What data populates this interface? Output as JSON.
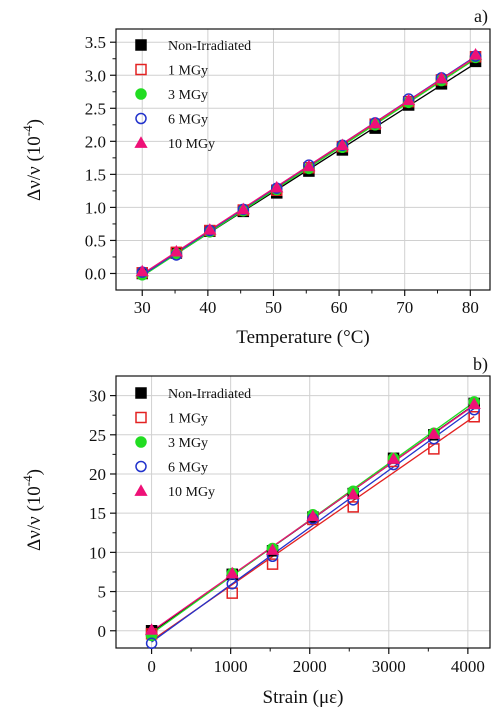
{
  "chart_data": [
    {
      "type": "scatter",
      "panel_label": "a)",
      "xlabel": "Temperature (°C)",
      "ylabel": "Δν/ν (10⁻⁴)",
      "ylabel_main": "Δν/ν (10",
      "ylabel_exp": "-4",
      "ylabel_close": ")",
      "xlim": [
        26,
        83
      ],
      "ylim": [
        -0.25,
        3.7
      ],
      "xticks": [
        30,
        40,
        50,
        60,
        70,
        80
      ],
      "xtick_labels": [
        "30",
        "40",
        "50",
        "60",
        "70",
        "80"
      ],
      "yticks": [
        0,
        0.5,
        1,
        1.5,
        2,
        2.5,
        3,
        3.5
      ],
      "ytick_labels": [
        "0.0",
        "0.5",
        "1.0",
        "1.5",
        "2.0",
        "2.5",
        "3.0",
        "3.5"
      ],
      "grid": true,
      "legend_position": "top-left",
      "x": [
        30,
        35.2,
        40.3,
        45.4,
        50.5,
        55.4,
        60.5,
        65.5,
        70.6,
        75.6,
        80.8
      ],
      "series": [
        {
          "name": "Non-Irradiated",
          "marker": "square-filled",
          "color": "#000000",
          "values": [
            0.0,
            0.31,
            0.64,
            0.94,
            1.22,
            1.55,
            1.87,
            2.2,
            2.55,
            2.87,
            3.21
          ]
        },
        {
          "name": "1 MGy",
          "marker": "square-open",
          "color": "#e32222",
          "values": [
            0.01,
            0.32,
            0.65,
            0.96,
            1.26,
            1.6,
            1.92,
            2.26,
            2.6,
            2.93,
            3.28
          ]
        },
        {
          "name": "3 MGy",
          "marker": "circle-filled",
          "color": "#22dd22",
          "values": [
            -0.02,
            0.3,
            0.63,
            0.95,
            1.27,
            1.59,
            1.91,
            2.25,
            2.59,
            2.92,
            3.27
          ]
        },
        {
          "name": "6 MGy",
          "marker": "circle-open",
          "color": "#2233cc",
          "values": [
            0.02,
            0.28,
            0.65,
            0.97,
            1.29,
            1.64,
            1.94,
            2.28,
            2.64,
            2.96,
            3.29
          ]
        },
        {
          "name": "10 MGy",
          "marker": "triangle-filled",
          "color": "#ee1177",
          "values": [
            0.03,
            0.33,
            0.66,
            0.97,
            1.3,
            1.62,
            1.94,
            2.27,
            2.62,
            2.95,
            3.31
          ]
        }
      ]
    },
    {
      "type": "scatter",
      "panel_label": "b)",
      "xlabel": "Strain (με)",
      "ylabel": "Δν/ν (10⁻⁴)",
      "ylabel_main": "Δν/ν (10",
      "ylabel_exp": "-4",
      "ylabel_close": ")",
      "xlim": [
        -450,
        4280
      ],
      "ylim": [
        -2.2,
        32.5
      ],
      "xticks": [
        0,
        1000,
        2000,
        3000,
        4000
      ],
      "xtick_labels": [
        "0",
        "1000",
        "2000",
        "3000",
        "4000"
      ],
      "yticks": [
        0,
        5,
        10,
        15,
        20,
        25,
        30
      ],
      "ytick_labels": [
        "0",
        "5",
        "10",
        "15",
        "20",
        "25",
        "30"
      ],
      "grid": true,
      "legend_position": "top-left",
      "x": [
        0,
        1020,
        1530,
        2040,
        2550,
        3060,
        3570,
        4080
      ],
      "series": [
        {
          "name": "Non-Irradiated",
          "marker": "square-filled",
          "color": "#000000",
          "values": [
            0.0,
            7.2,
            10.2,
            14.5,
            17.5,
            22.0,
            25.0,
            29.0
          ]
        },
        {
          "name": "1 MGy",
          "marker": "square-open",
          "color": "#e32222",
          "values": [
            -0.4,
            4.8,
            8.5,
            14.2,
            15.8,
            21.6,
            23.2,
            27.3
          ]
        },
        {
          "name": "3 MGy",
          "marker": "circle-filled",
          "color": "#22dd22",
          "values": [
            -0.6,
            7.3,
            10.5,
            14.8,
            17.8,
            22.0,
            25.2,
            29.2
          ]
        },
        {
          "name": "6 MGy",
          "marker": "circle-open",
          "color": "#2233cc",
          "values": [
            -1.6,
            6.0,
            9.5,
            14.3,
            16.7,
            21.2,
            24.5,
            28.2
          ]
        },
        {
          "name": "10 MGy",
          "marker": "triangle-filled",
          "color": "#ee1177",
          "values": [
            0.1,
            7.3,
            10.3,
            14.6,
            17.4,
            21.9,
            25.1,
            28.9
          ]
        }
      ]
    }
  ]
}
